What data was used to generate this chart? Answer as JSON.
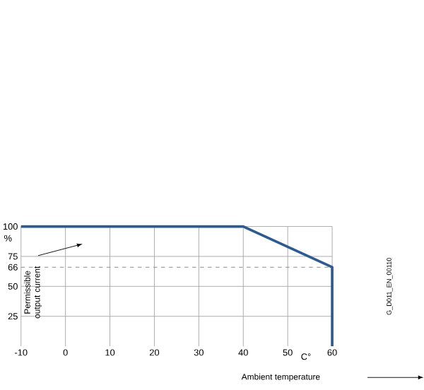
{
  "chart_data": {
    "type": "line",
    "xlabel": "Ambient temperature",
    "ylabel": "Permissible output current",
    "x": [
      -10,
      40,
      60,
      60
    ],
    "series": [
      {
        "color": "#2d5b91",
        "values": [
          100,
          100,
          66,
          0
        ]
      }
    ],
    "xlim": [
      -10,
      60
    ],
    "ylim": [
      0,
      100
    ],
    "xticks": [
      -10,
      0,
      10,
      20,
      30,
      40,
      50,
      60
    ],
    "yticks": [
      25,
      50,
      66,
      75,
      100
    ],
    "grid": true,
    "marker": "none",
    "line_style": "solid",
    "ref_lines": [
      {
        "axis": "y",
        "value": 66,
        "color": "#8c8c8c",
        "line_style": "dashed"
      }
    ],
    "annotations": [
      "%",
      "C°",
      "G_D011_EN_00110"
    ]
  }
}
